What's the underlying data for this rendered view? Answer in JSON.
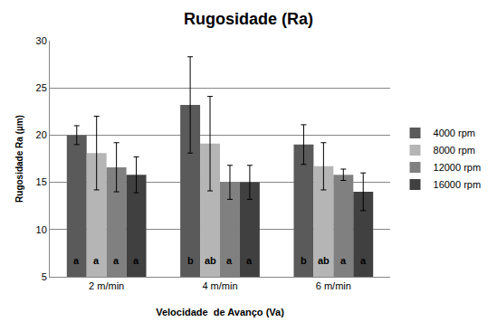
{
  "chart_data": {
    "type": "bar",
    "title": "Rugosidade (Ra)",
    "x_label": "Velocidade  de Avanço (Va)",
    "y_label": "Rugosidade Ra (µm)",
    "categories": [
      "2 m/min",
      "4 m/min",
      "6 m/min"
    ],
    "series": [
      {
        "name": "4000 rpm",
        "color": "#5a5a5a",
        "values": [
          20.0,
          23.2,
          19.0
        ],
        "error": [
          1.0,
          5.1,
          2.1
        ],
        "annotations": [
          "a",
          "b",
          "b"
        ]
      },
      {
        "name": "8000 rpm",
        "color": "#b5b5b5",
        "values": [
          18.1,
          19.1,
          16.7
        ],
        "error": [
          3.9,
          5.0,
          2.5
        ],
        "annotations": [
          "a",
          "ab",
          "ab"
        ]
      },
      {
        "name": "12000 rpm",
        "color": "#808080",
        "values": [
          16.6,
          15.0,
          15.8
        ],
        "error": [
          2.6,
          1.8,
          0.6
        ],
        "annotations": [
          "a",
          "a",
          "a"
        ]
      },
      {
        "name": "16000 rpm",
        "color": "#404040",
        "values": [
          15.8,
          15.0,
          14.0
        ],
        "error": [
          1.9,
          1.8,
          2.0
        ],
        "annotations": [
          "a",
          "a",
          "a"
        ]
      }
    ],
    "ylim": [
      5,
      30
    ],
    "yticks": [
      5,
      10,
      15,
      20,
      25,
      30
    ],
    "grid": true,
    "legend": "right"
  }
}
